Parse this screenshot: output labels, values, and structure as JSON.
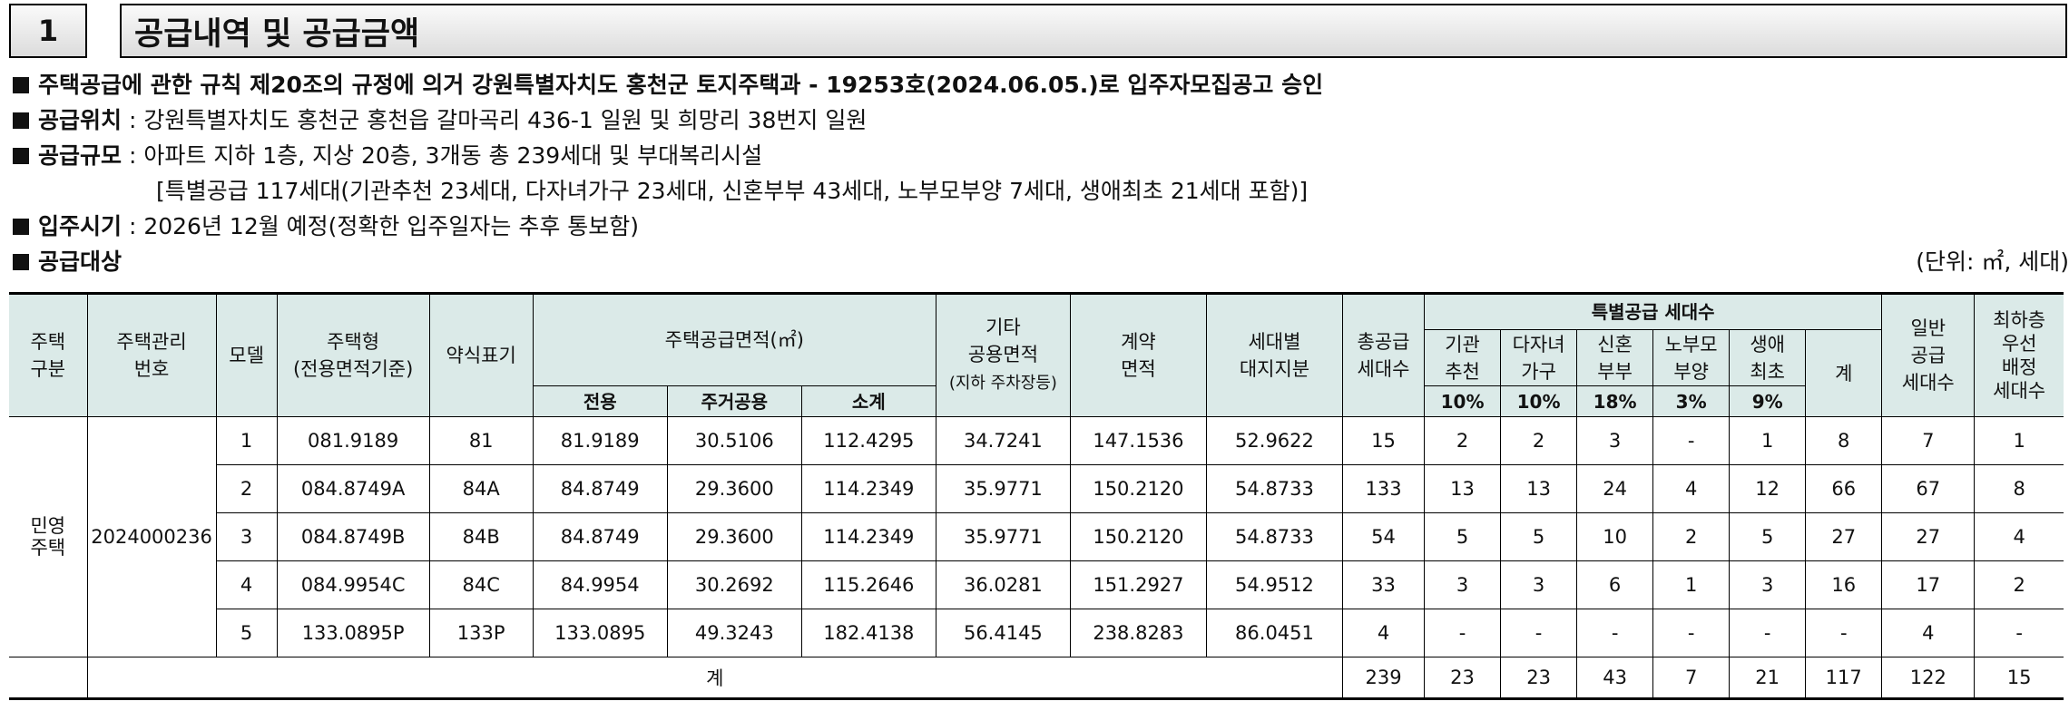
{
  "section": {
    "number": "1",
    "title": "공급내역 및 공급금액"
  },
  "lines": {
    "approval": "주택공급에 관한 규칙 제20조의 규정에 의거 강원특별자치도 홍천군 토지주택과 - 19253호(2024.06.05.)로 입주자모집공고 승인",
    "location_label": "공급위치",
    "location_value": ": 강원특별자치도 홍천군 홍천읍 갈마곡리 436-1 일원 및 희망리 38번지 일원",
    "scale_label": "공급규모",
    "scale_value": ": 아파트 지하 1층, 지상 20층, 3개동 총 239세대 및 부대복리시설",
    "special_value": "[특별공급 117세대(기관추천 23세대, 다자녀가구 23세대, 신혼부부 43세대, 노부모부양 7세대, 생애최초 21세대 포함)]",
    "movein_label": "입주시기",
    "movein_value": ": 2026년 12월 예정(정확한 입주일자는 추후 통보함)",
    "target_label": "공급대상",
    "unit": "(단위: ㎡, 세대)"
  },
  "table": {
    "headers": {
      "type": "주택\n구분",
      "mgmt_no": "주택관리\n번호",
      "model": "모델",
      "housing_type": "주택형\n(전용면적기준)",
      "abbr": "약식표기",
      "supply_area": "주택공급면적(㎡)",
      "exclusive": "전용",
      "residential_common": "주거공용",
      "subtotal": "소계",
      "other_common_1": "기타\n공용면적",
      "other_common_2": "(지하 주차장등)",
      "contract_area": "계약\n면적",
      "land_share": "세대별\n대지지분",
      "total_supply": "총공급\n세대수",
      "special_supply": "특별공급 세대수",
      "institution": "기관\n추천",
      "multi_child": "다자녀\n가구",
      "newlywed": "신혼\n부부",
      "elderly": "노부모\n부양",
      "first_life": "생애\n최초",
      "special_total": "계",
      "general": "일반\n공급\n세대수",
      "lowest_floor": "최하층\n우선\n배정\n세대수",
      "pct_institution": "10%",
      "pct_multi_child": "10%",
      "pct_newlywed": "18%",
      "pct_elderly": "3%",
      "pct_first_life": "9%"
    },
    "type_value": "민영\n주택",
    "mgmt_no_value": "2024000236",
    "rows": [
      [
        "1",
        "081.9189",
        "81",
        "81.9189",
        "30.5106",
        "112.4295",
        "34.7241",
        "147.1536",
        "52.9622",
        "15",
        "2",
        "2",
        "3",
        "-",
        "1",
        "8",
        "7",
        "1"
      ],
      [
        "2",
        "084.8749A",
        "84A",
        "84.8749",
        "29.3600",
        "114.2349",
        "35.9771",
        "150.2120",
        "54.8733",
        "133",
        "13",
        "13",
        "24",
        "4",
        "12",
        "66",
        "67",
        "8"
      ],
      [
        "3",
        "084.8749B",
        "84B",
        "84.8749",
        "29.3600",
        "114.2349",
        "35.9771",
        "150.2120",
        "54.8733",
        "54",
        "5",
        "5",
        "10",
        "2",
        "5",
        "27",
        "27",
        "4"
      ],
      [
        "4",
        "084.9954C",
        "84C",
        "84.9954",
        "30.2692",
        "115.2646",
        "36.0281",
        "151.2927",
        "54.9512",
        "33",
        "3",
        "3",
        "6",
        "1",
        "3",
        "16",
        "17",
        "2"
      ],
      [
        "5",
        "133.0895P",
        "133P",
        "133.0895",
        "49.3243",
        "182.4138",
        "56.4145",
        "238.8283",
        "86.0451",
        "4",
        "-",
        "-",
        "-",
        "-",
        "-",
        "-",
        "4",
        "-"
      ]
    ],
    "total": {
      "label": "계",
      "values": [
        "239",
        "23",
        "23",
        "43",
        "7",
        "21",
        "117",
        "122",
        "15"
      ]
    }
  }
}
